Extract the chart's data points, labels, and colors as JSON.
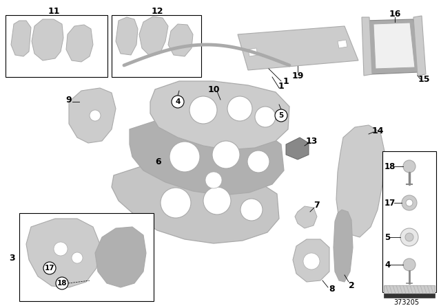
{
  "bg": "#ffffff",
  "dpi": 100,
  "fw": 6.4,
  "fh": 4.48,
  "diagram_num": "373205",
  "gray_light": "#cccccc",
  "gray_mid": "#aaaaaa",
  "gray_dark": "#888888",
  "gray_panel": "#b0b0b0",
  "white": "#ffffff",
  "black": "#000000",
  "label_fs": 8.5,
  "label_bold": "bold"
}
